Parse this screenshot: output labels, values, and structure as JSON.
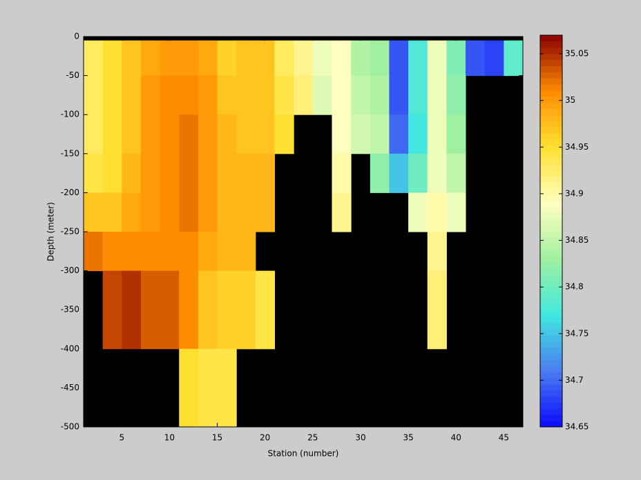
{
  "chart_data": {
    "type": "heatmap",
    "xlabel": "Station (number)",
    "ylabel": "Depth (meter)",
    "xlim": [
      1,
      47
    ],
    "ylim": [
      -500,
      0
    ],
    "xticks": [
      5,
      10,
      15,
      20,
      25,
      30,
      35,
      40,
      45
    ],
    "yticks": [
      0,
      -50,
      -100,
      -150,
      -200,
      -250,
      -300,
      -350,
      -400,
      -450,
      -500
    ],
    "x_edges": [
      1,
      3,
      5,
      7,
      9,
      11,
      13,
      15,
      17,
      19,
      21,
      23,
      25,
      27,
      29,
      31,
      33,
      35,
      37,
      39,
      41,
      43,
      45,
      47
    ],
    "y_edges": [
      -5,
      -50,
      -100,
      -150,
      -200,
      -250,
      -300,
      -400,
      -500
    ],
    "z": [
      [
        34.93,
        34.95,
        34.97,
        34.99,
        35.0,
        35.0,
        34.99,
        34.96,
        34.97,
        34.97,
        34.93,
        34.91,
        34.88,
        34.89,
        34.84,
        34.83,
        34.69,
        34.78,
        34.88,
        34.81,
        34.69,
        34.68,
        34.79
      ],
      [
        34.93,
        34.95,
        34.97,
        35.0,
        35.01,
        35.01,
        35.0,
        34.97,
        34.97,
        34.97,
        34.94,
        34.92,
        34.87,
        34.89,
        34.85,
        34.84,
        34.69,
        34.78,
        34.88,
        34.82,
        null,
        null,
        null
      ],
      [
        34.93,
        34.95,
        34.97,
        35.0,
        35.01,
        35.02,
        35.0,
        34.98,
        34.97,
        34.97,
        34.95,
        null,
        null,
        34.89,
        34.86,
        34.85,
        34.7,
        34.77,
        34.88,
        34.83,
        null,
        null,
        null
      ],
      [
        34.94,
        34.95,
        34.98,
        35.0,
        35.01,
        35.02,
        35.0,
        34.98,
        34.98,
        34.98,
        null,
        null,
        null,
        34.9,
        null,
        34.82,
        34.75,
        34.8,
        34.88,
        34.85,
        null,
        null,
        null
      ],
      [
        34.97,
        34.97,
        34.99,
        35.0,
        35.01,
        35.02,
        35.0,
        34.98,
        34.98,
        34.98,
        null,
        null,
        null,
        34.91,
        null,
        null,
        null,
        34.88,
        34.9,
        34.88,
        null,
        null,
        null
      ],
      [
        35.02,
        35.01,
        35.01,
        35.01,
        35.01,
        35.01,
        34.99,
        34.98,
        34.98,
        null,
        null,
        null,
        null,
        null,
        null,
        null,
        null,
        null,
        34.91,
        null,
        null,
        null,
        null
      ],
      [
        null,
        35.04,
        35.05,
        35.03,
        35.03,
        35.01,
        34.97,
        34.96,
        34.96,
        34.94,
        null,
        null,
        null,
        null,
        null,
        null,
        null,
        null,
        34.92,
        null,
        null,
        null,
        null
      ],
      [
        null,
        null,
        null,
        null,
        null,
        34.95,
        34.94,
        34.94,
        null,
        null,
        null,
        null,
        null,
        null,
        null,
        null,
        null,
        null,
        null,
        null,
        null,
        null,
        null
      ]
    ],
    "clim": [
      34.65,
      35.07
    ],
    "cticks": [
      34.65,
      34.7,
      34.75,
      34.8,
      34.85,
      34.9,
      34.95,
      35,
      35.05
    ],
    "colormap": [
      "#0a0aff",
      "#4a7cf0",
      "#40e8e0",
      "#a0f0a0",
      "#ffffc0",
      "#ffe030",
      "#ff8c00",
      "#8b0000"
    ],
    "missing_color": "#000000"
  }
}
